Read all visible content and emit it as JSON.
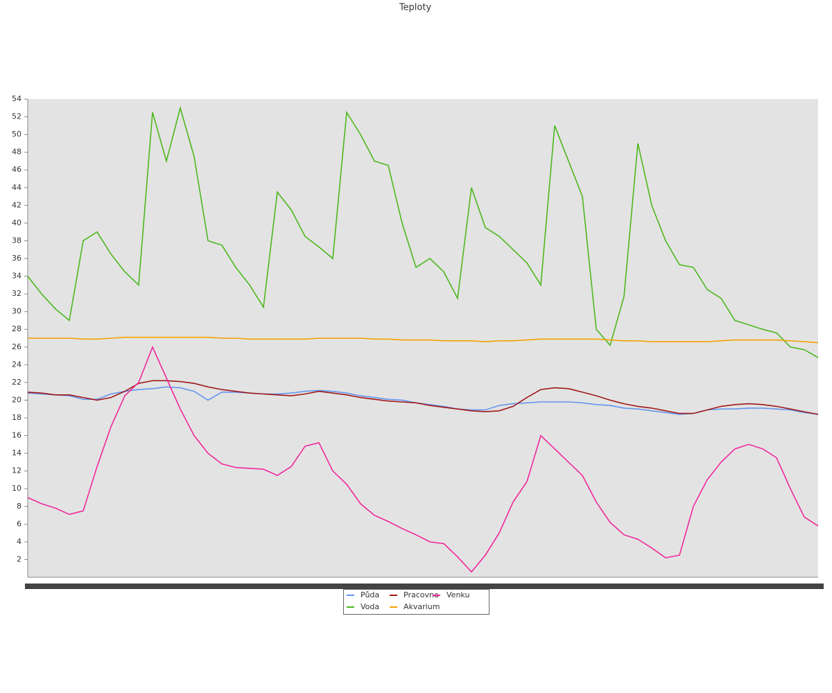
{
  "chart_data": {
    "type": "line",
    "title": "Teploty",
    "categories": [
      null,
      null,
      null,
      null,
      null,
      null,
      null,
      null,
      null,
      null,
      null,
      null,
      null,
      null,
      null,
      null,
      null,
      null,
      null,
      null,
      null,
      null,
      null,
      null,
      null,
      null,
      null,
      null,
      null,
      null,
      null,
      null,
      null,
      null,
      null,
      null,
      null,
      null,
      null,
      null,
      null,
      null,
      null,
      null,
      null,
      null,
      null,
      null,
      null,
      null,
      null,
      null,
      null,
      null,
      null,
      null,
      null,
      null
    ],
    "ylim": [
      0,
      54
    ],
    "yticks": [
      2,
      4,
      6,
      8,
      10,
      12,
      14,
      16,
      18,
      20,
      22,
      24,
      26,
      28,
      30,
      32,
      34,
      36,
      38,
      40,
      42,
      44,
      46,
      48,
      50,
      52,
      54
    ],
    "series": [
      {
        "name": "Půda",
        "color": "#6495ed",
        "values": [
          20.8,
          20.7,
          20.6,
          20.5,
          20.1,
          20.1,
          20.7,
          21,
          21.2,
          21.3,
          21.5,
          21.4,
          21,
          20,
          20.9,
          20.9,
          20.8,
          20.7,
          20.7,
          20.8,
          21,
          21.1,
          21,
          20.8,
          20.5,
          20.3,
          20.1,
          20,
          19.7,
          19.5,
          19.3,
          19,
          18.9,
          18.9,
          19.4,
          19.6,
          19.7,
          19.8,
          19.8,
          19.8,
          19.7,
          19.5,
          19.4,
          19.1,
          19,
          18.8,
          18.6,
          18.4,
          18.5,
          18.9,
          19,
          19,
          19.1,
          19.1,
          19,
          18.9,
          18.6,
          18.4
        ]
      },
      {
        "name": "Voda",
        "color": "#4cb71c",
        "values": [
          34,
          32,
          30.3,
          29,
          38,
          39,
          36.5,
          34.5,
          33,
          52.5,
          47,
          53,
          47.5,
          38,
          37.5,
          35,
          33,
          30.5,
          43.5,
          41.5,
          38.5,
          37.3,
          36,
          52.5,
          50,
          47,
          46.5,
          40,
          35,
          36,
          34.5,
          31.5,
          44,
          39.5,
          38.5,
          37,
          35.5,
          33,
          51,
          47,
          43,
          28,
          26.2,
          31.7,
          49,
          42,
          38,
          35.3,
          35,
          32.5,
          31.5,
          29,
          28.5,
          28,
          27.6,
          26,
          25.7,
          24.8
        ]
      },
      {
        "name": "Pracovna",
        "color": "#a01818",
        "values": [
          20.9,
          20.8,
          20.6,
          20.6,
          20.3,
          20,
          20.3,
          21,
          21.9,
          22.2,
          22.2,
          22.1,
          21.9,
          21.5,
          21.2,
          21,
          20.8,
          20.7,
          20.6,
          20.5,
          20.7,
          21,
          20.8,
          20.6,
          20.3,
          20.1,
          19.9,
          19.8,
          19.7,
          19.4,
          19.2,
          19,
          18.8,
          18.7,
          18.8,
          19.3,
          20.3,
          21.2,
          21.4,
          21.3,
          20.9,
          20.5,
          20,
          19.6,
          19.3,
          19.1,
          18.8,
          18.5,
          18.5,
          18.9,
          19.3,
          19.5,
          19.6,
          19.5,
          19.3,
          19,
          18.7,
          18.4
        ]
      },
      {
        "name": "Akvarium",
        "color": "#f5a000",
        "values": [
          27,
          27,
          27,
          27,
          26.9,
          26.9,
          27,
          27.1,
          27.1,
          27.1,
          27.1,
          27.1,
          27.1,
          27.1,
          27,
          27,
          26.9,
          26.9,
          26.9,
          26.9,
          26.9,
          27,
          27,
          27,
          27,
          26.9,
          26.9,
          26.8,
          26.8,
          26.8,
          26.7,
          26.7,
          26.7,
          26.6,
          26.7,
          26.7,
          26.8,
          26.9,
          26.9,
          26.9,
          26.9,
          26.9,
          26.8,
          26.7,
          26.7,
          26.6,
          26.6,
          26.6,
          26.6,
          26.6,
          26.7,
          26.8,
          26.8,
          26.8,
          26.8,
          26.7,
          26.6,
          26.5
        ]
      },
      {
        "name": "Venku",
        "color": "#f0279b",
        "values": [
          9,
          8.3,
          7.8,
          7.1,
          7.5,
          12.5,
          17,
          20.5,
          22,
          26,
          22.5,
          19,
          16,
          14,
          12.8,
          12.4,
          12.3,
          12.2,
          11.5,
          12.5,
          14.8,
          15.2,
          12,
          10.5,
          8.3,
          7,
          6.3,
          5.5,
          4.8,
          4,
          3.8,
          2.3,
          0.6,
          2.5,
          5,
          8.5,
          10.8,
          16,
          14.5,
          13,
          11.5,
          8.5,
          6.2,
          4.8,
          4.3,
          3.3,
          2.2,
          2.5,
          8,
          11,
          13,
          14.5,
          15,
          14.5,
          13.5,
          10,
          6.8,
          5.8
        ]
      }
    ]
  }
}
